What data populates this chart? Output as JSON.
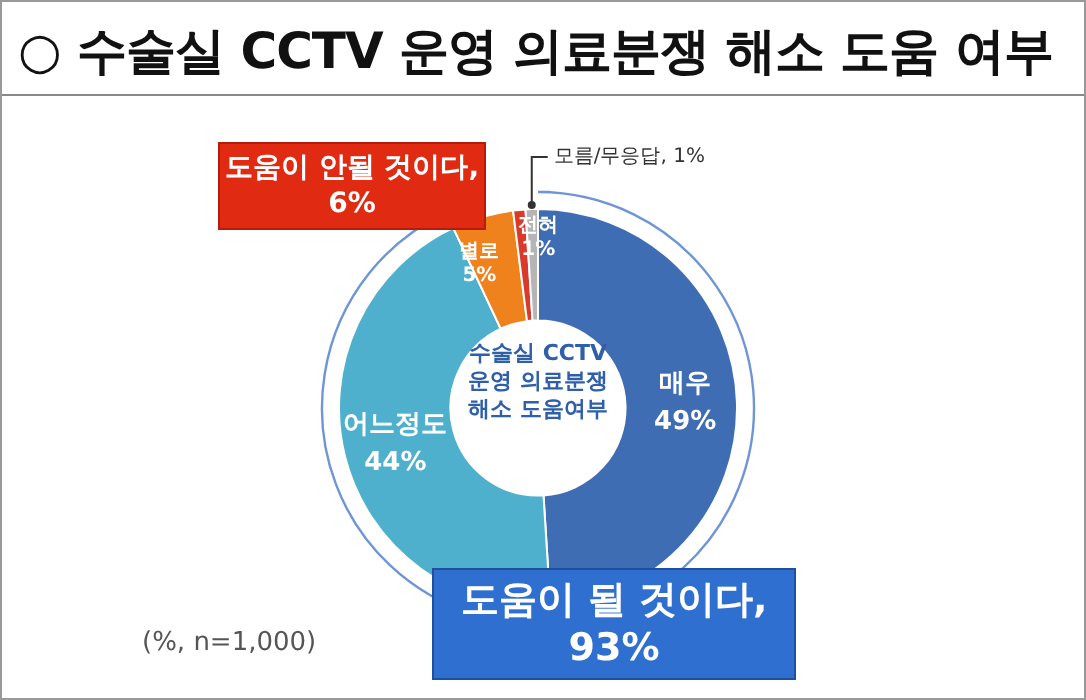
{
  "chart_data": {
    "type": "donut",
    "title": "○ 수술실 CCTV 운영 의료분쟁 해소 도움 여부",
    "categories": [
      "매우",
      "어느정도",
      "별로",
      "전혀",
      "모름/무응답"
    ],
    "values": [
      49,
      44,
      5,
      1,
      1
    ],
    "value_labels": [
      "49%",
      "44%",
      "5%",
      "1%",
      "1%"
    ],
    "colors": [
      "#3f6db3",
      "#4eb0cc",
      "#f0821e",
      "#d93a2b",
      "#b5b5b5"
    ],
    "legend": false,
    "annotations": [
      "수술실 CCTV 운영 의료분쟁 해소 도움여부",
      "도움이 안될 것이다, 6%",
      "도움이 될 것이다, 93%",
      "(%, n=1,000)"
    ]
  }
}
